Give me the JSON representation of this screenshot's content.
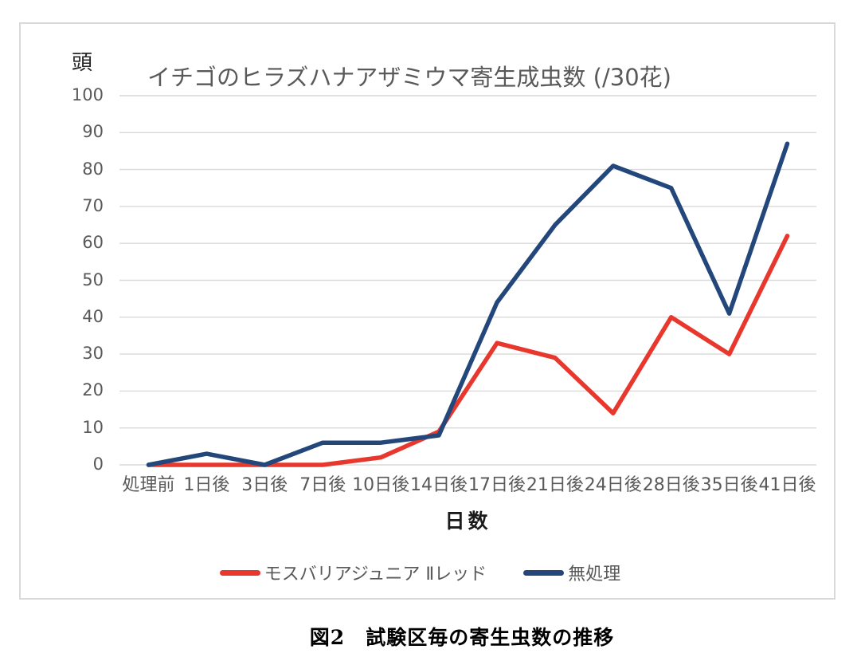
{
  "page": {
    "caption": "図2　試験区毎の寄生虫数の推移"
  },
  "colors": {
    "series_red": "#e8382d",
    "series_blue": "#24477b",
    "gridline": "#d9d9d9",
    "axis_text": "#595959",
    "title_text": "#595959",
    "caption_text": "#000000",
    "frame_border": "#d9d9d9"
  },
  "chart_data": {
    "type": "line",
    "title": "イチゴのヒラズハナアザミウマ寄生成虫数 (/30花)",
    "y_unit_label": "頭",
    "xlabel": "日数",
    "ylabel": "",
    "ylim": [
      0,
      100
    ],
    "ytick_step": 10,
    "grid": true,
    "legend_position": "bottom",
    "categories": [
      "処理前",
      "1日後",
      "3日後",
      "7日後",
      "10日後",
      "14日後",
      "17日後",
      "21日後",
      "24日後",
      "28日後",
      "35日後",
      "41日後"
    ],
    "series": [
      {
        "name": "モスバリアジュニア Ⅱレッド",
        "color": "#e8382d",
        "values": [
          0,
          0,
          0,
          0,
          2,
          9,
          33,
          29,
          14,
          40,
          30,
          62
        ]
      },
      {
        "name": "無処理",
        "color": "#24477b",
        "values": [
          0,
          3,
          0,
          6,
          6,
          8,
          44,
          65,
          81,
          75,
          41,
          87
        ]
      }
    ]
  }
}
